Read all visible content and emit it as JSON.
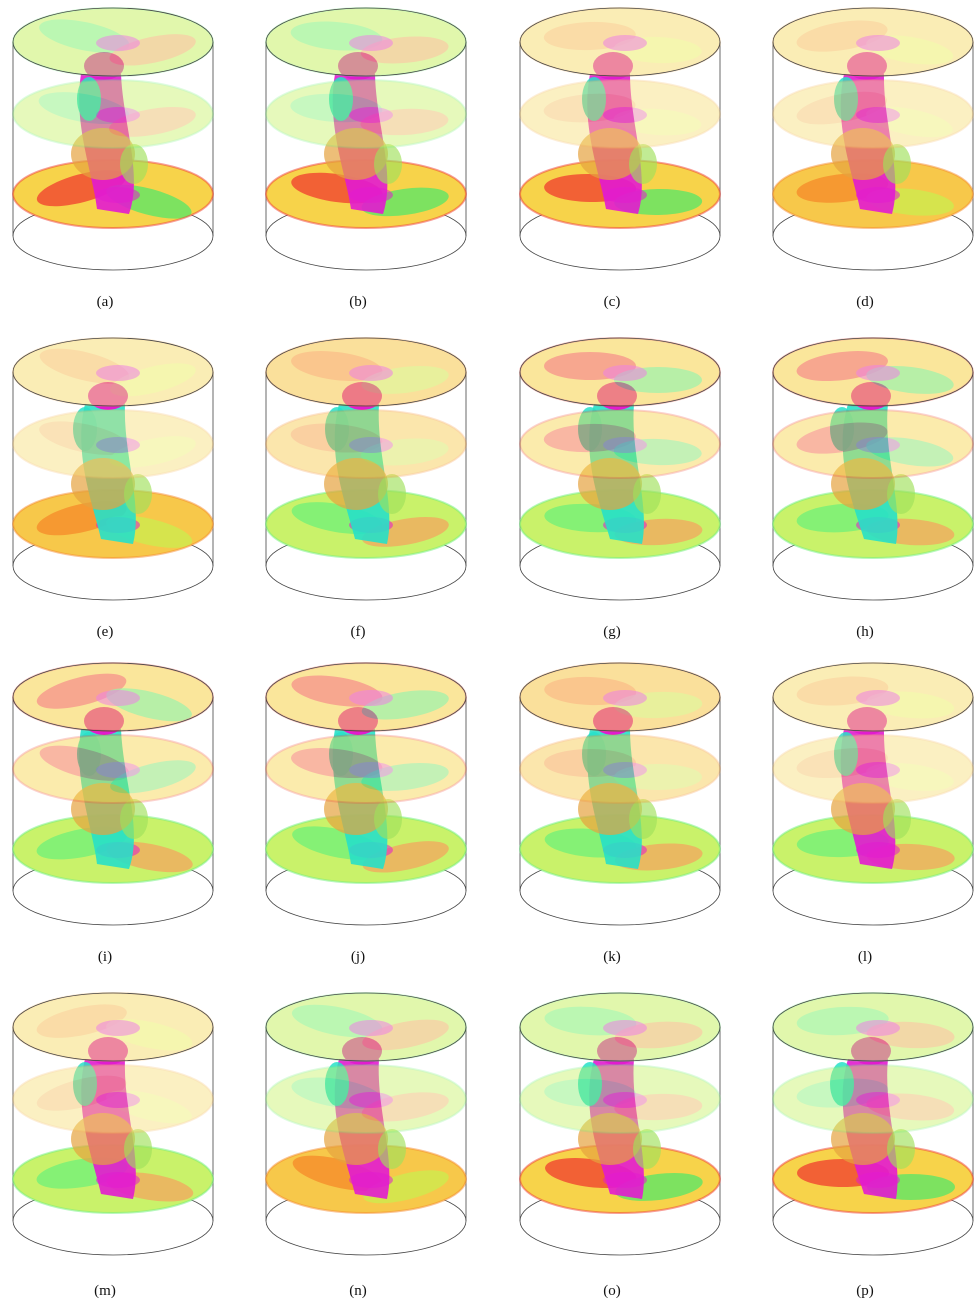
{
  "figure": {
    "panels": [
      {
        "label": "(a)",
        "top_palette": "green",
        "bottom_palette": "red"
      },
      {
        "label": "(b)",
        "top_palette": "green",
        "bottom_palette": "red"
      },
      {
        "label": "(c)",
        "top_palette": "pale",
        "bottom_palette": "red"
      },
      {
        "label": "(d)",
        "top_palette": "pale",
        "bottom_palette": "orange"
      },
      {
        "label": "(e)",
        "top_palette": "pale",
        "bottom_palette": "orange"
      },
      {
        "label": "(f)",
        "top_palette": "orange",
        "bottom_palette": "green"
      },
      {
        "label": "(g)",
        "top_palette": "red",
        "bottom_palette": "green"
      },
      {
        "label": "(h)",
        "top_palette": "red",
        "bottom_palette": "green"
      },
      {
        "label": "(i)",
        "top_palette": "red",
        "bottom_palette": "green"
      },
      {
        "label": "(j)",
        "top_palette": "red",
        "bottom_palette": "green"
      },
      {
        "label": "(k)",
        "top_palette": "orange",
        "bottom_palette": "green"
      },
      {
        "label": "(l)",
        "top_palette": "pale",
        "bottom_palette": "green"
      },
      {
        "label": "(m)",
        "top_palette": "pale",
        "bottom_palette": "green"
      },
      {
        "label": "(n)",
        "top_palette": "green",
        "bottom_palette": "orange"
      },
      {
        "label": "(o)",
        "top_palette": "green",
        "bottom_palette": "red"
      },
      {
        "label": "(p)",
        "top_palette": "green",
        "bottom_palette": "red"
      }
    ]
  },
  "palettes": {
    "green": {
      "base": "#c9f26a",
      "accent": "#6df07a",
      "warm": "#f7a15e"
    },
    "red": {
      "base": "#f7d34a",
      "accent": "#f03b2f",
      "warm": "#49e86a"
    },
    "pale": {
      "base": "#f7e07a",
      "accent": "#f5b55a",
      "warm": "#e9f56a"
    },
    "orange": {
      "base": "#f7c84a",
      "accent": "#f58a2a",
      "warm": "#c8f04e"
    }
  },
  "colors": {
    "magenta": "#e21bd0",
    "cyan": "#27e0c8",
    "translucent_green": "#9fe05a",
    "translucent_orange": "#e5a23f",
    "outline": "#444444"
  }
}
